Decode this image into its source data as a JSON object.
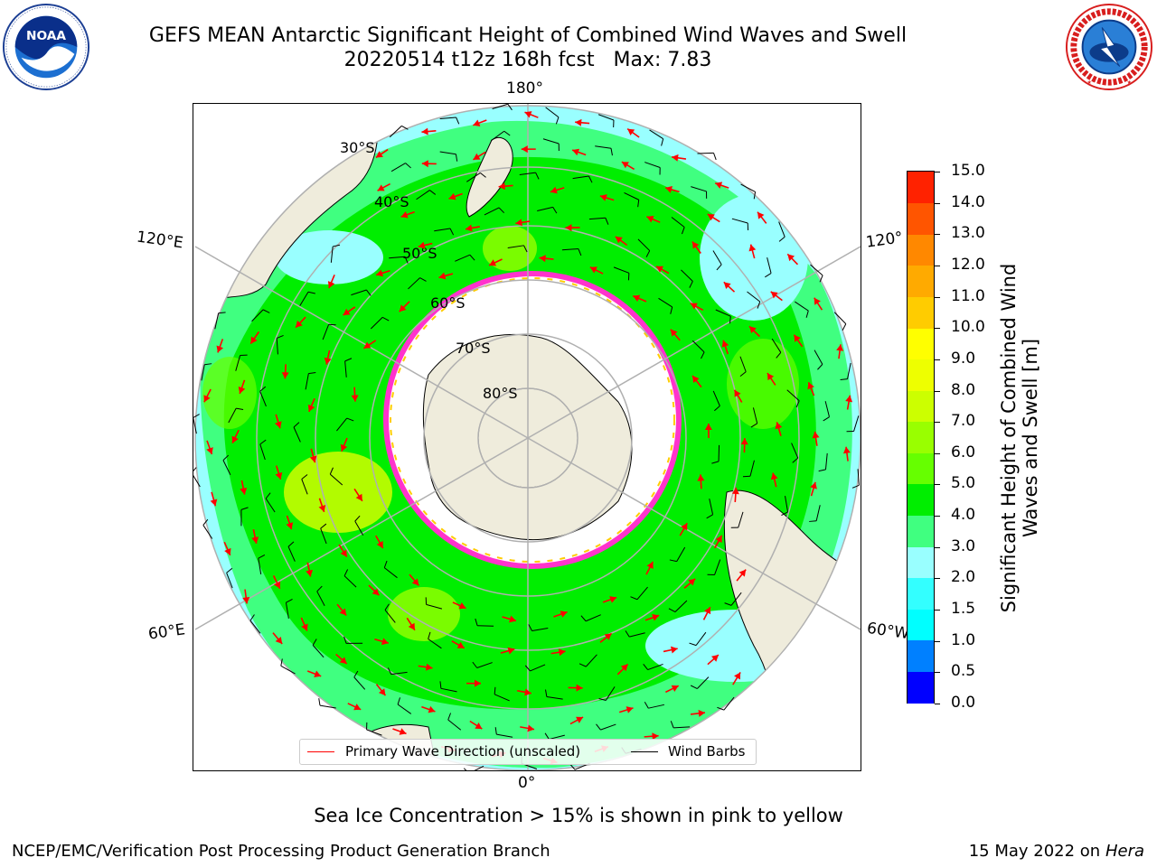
{
  "header": {
    "title_line1": "GEFS MEAN Antarctic Significant Height of Combined Wind Waves and Swell",
    "title_line2": "20220514 t12z 168h fcst   Max: 7.83"
  },
  "logos": {
    "left": {
      "icon": "noaa-logo",
      "text": "NOAA",
      "ring_text": "NATIONAL OCEANIC AND ATMOSPHERIC ADMINISTRATION · U.S. DEPARTMENT OF COMMERCE"
    },
    "right": {
      "icon": "nws-logo",
      "ring_text": "NATIONAL WEATHER SERVICE"
    }
  },
  "map": {
    "projection": "south polar stereographic",
    "longitude_labels": {
      "top": "180°",
      "bottom": "0°",
      "upper_left": "120°E",
      "lower_left": "60°E",
      "upper_right": "120°",
      "lower_right": "60°W"
    },
    "latitude_labels": [
      "30°S",
      "40°S",
      "50°S",
      "60°S",
      "70°S",
      "80°S"
    ],
    "colors": {
      "land": "#efecdc",
      "ice": "#ffffff",
      "ice_edge": "#ff33cc",
      "gridline": "#b0b0b0",
      "wave_arrow": "#ff0000",
      "wind_barb": "#000000"
    }
  },
  "legend": {
    "wave_label": "Primary Wave Direction (unscaled)",
    "wind_label": "Wind Barbs"
  },
  "colorbar": {
    "title": "Significant Height of Combined Wind Waves and Swell [m]",
    "ticks": [
      "15.0",
      "14.0",
      "13.0",
      "12.0",
      "11.0",
      "10.0",
      "9.0",
      "8.0",
      "7.0",
      "6.0",
      "5.0",
      "4.0",
      "3.0",
      "2.0",
      "1.5",
      "1.0",
      "0.5",
      "0.0"
    ],
    "colors_bottom_to_top": [
      "#0000ff",
      "#0080ff",
      "#00ffff",
      "#33ffff",
      "#99ffff",
      "#40ff80",
      "#00ee00",
      "#66ff00",
      "#99ff00",
      "#ccff00",
      "#eeff00",
      "#ffff00",
      "#ffcc00",
      "#ffaa00",
      "#ff8800",
      "#ff5500",
      "#ff2200"
    ]
  },
  "footer": {
    "sea_ice_note": "Sea Ice Concentration > 15% is shown in pink to yellow",
    "left": "NCEP/EMC/Verification Post Processing Product Generation Branch",
    "right_date": "15 May 2022 on",
    "right_machine": "Hera"
  }
}
